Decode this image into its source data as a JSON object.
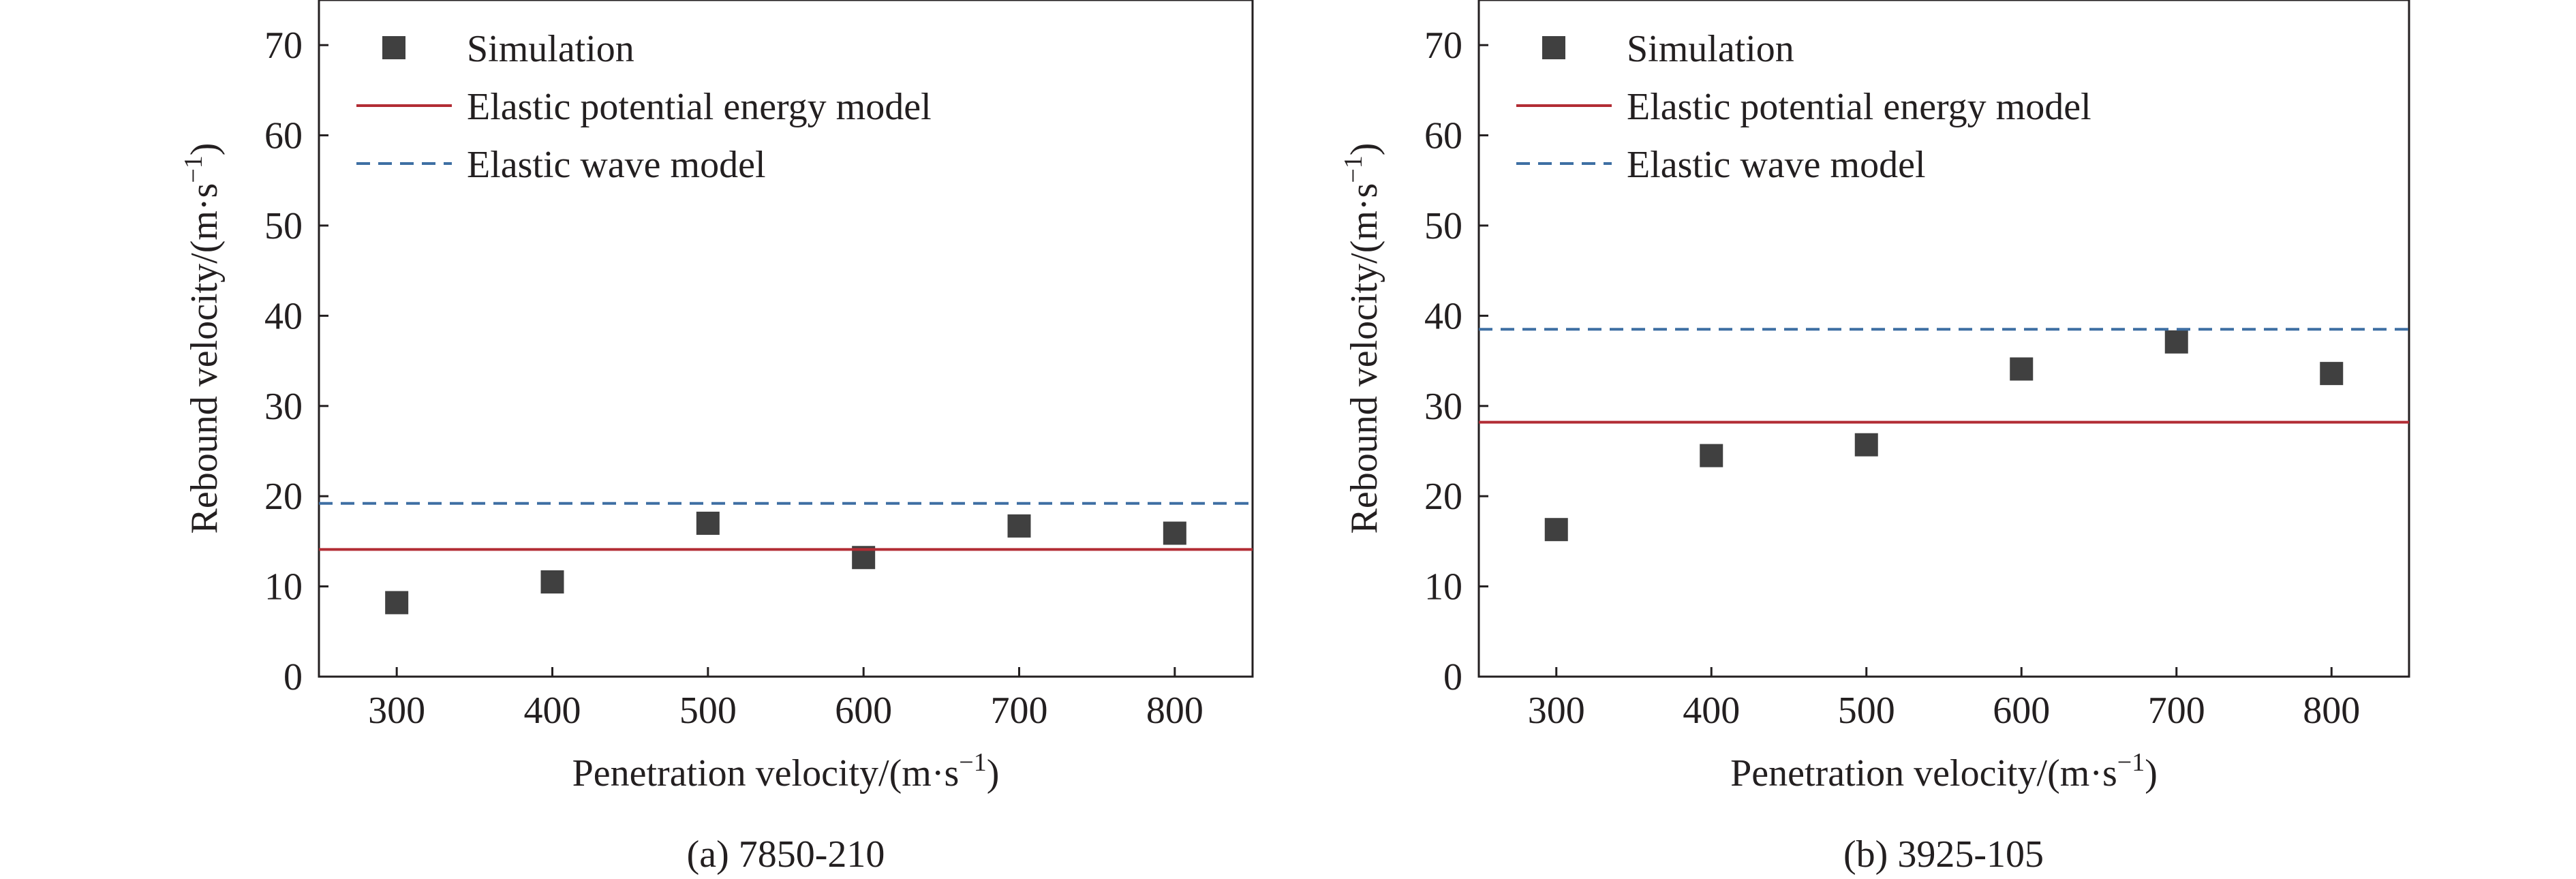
{
  "chart_data": [
    {
      "type": "scatter",
      "panel_label": "(a) 7850-210",
      "xlabel": "Penetration velocity/(m·s",
      "xlabel_sup": "−1",
      "xlabel_end": ")",
      "ylabel": "Rebound velocity/(m·s",
      "ylabel_sup": "−1",
      "ylabel_end": ")",
      "xlim": [
        250,
        850
      ],
      "ylim": [
        0,
        75
      ],
      "xticks": [
        300,
        400,
        500,
        600,
        700,
        800
      ],
      "yticks": [
        0,
        10,
        20,
        30,
        40,
        50,
        60,
        70
      ],
      "legend_position": "top-left",
      "series": [
        {
          "name": "Simulation",
          "kind": "points",
          "color": "#404040",
          "x": [
            300,
            400,
            500,
            600,
            700,
            800
          ],
          "y": [
            8.2,
            10.5,
            17.0,
            13.2,
            16.7,
            15.9
          ]
        },
        {
          "name": "Elastic potential energy model",
          "kind": "hline",
          "color": "#b22c34",
          "y": 14.1
        },
        {
          "name": "Elastic wave model",
          "kind": "hline-dashed",
          "color": "#3e6fa3",
          "y": 19.2
        }
      ]
    },
    {
      "type": "scatter",
      "panel_label": "(b) 3925-105",
      "xlabel": "Penetration velocity/(m·s",
      "xlabel_sup": "−1",
      "xlabel_end": ")",
      "ylabel": "Rebound velocity/(m·s",
      "ylabel_sup": "−1",
      "ylabel_end": ")",
      "xlim": [
        250,
        850
      ],
      "ylim": [
        0,
        75
      ],
      "xticks": [
        300,
        400,
        500,
        600,
        700,
        800
      ],
      "yticks": [
        0,
        10,
        20,
        30,
        40,
        50,
        60,
        70
      ],
      "legend_position": "top-left",
      "series": [
        {
          "name": "Simulation",
          "kind": "points",
          "color": "#404040",
          "x": [
            300,
            400,
            500,
            600,
            700,
            800
          ],
          "y": [
            16.3,
            24.5,
            25.7,
            34.1,
            37.1,
            33.6
          ]
        },
        {
          "name": "Elastic potential energy model",
          "kind": "hline",
          "color": "#b22c34",
          "y": 28.2
        },
        {
          "name": "Elastic wave model",
          "kind": "hline-dashed",
          "color": "#3e6fa3",
          "y": 38.5
        }
      ]
    }
  ]
}
